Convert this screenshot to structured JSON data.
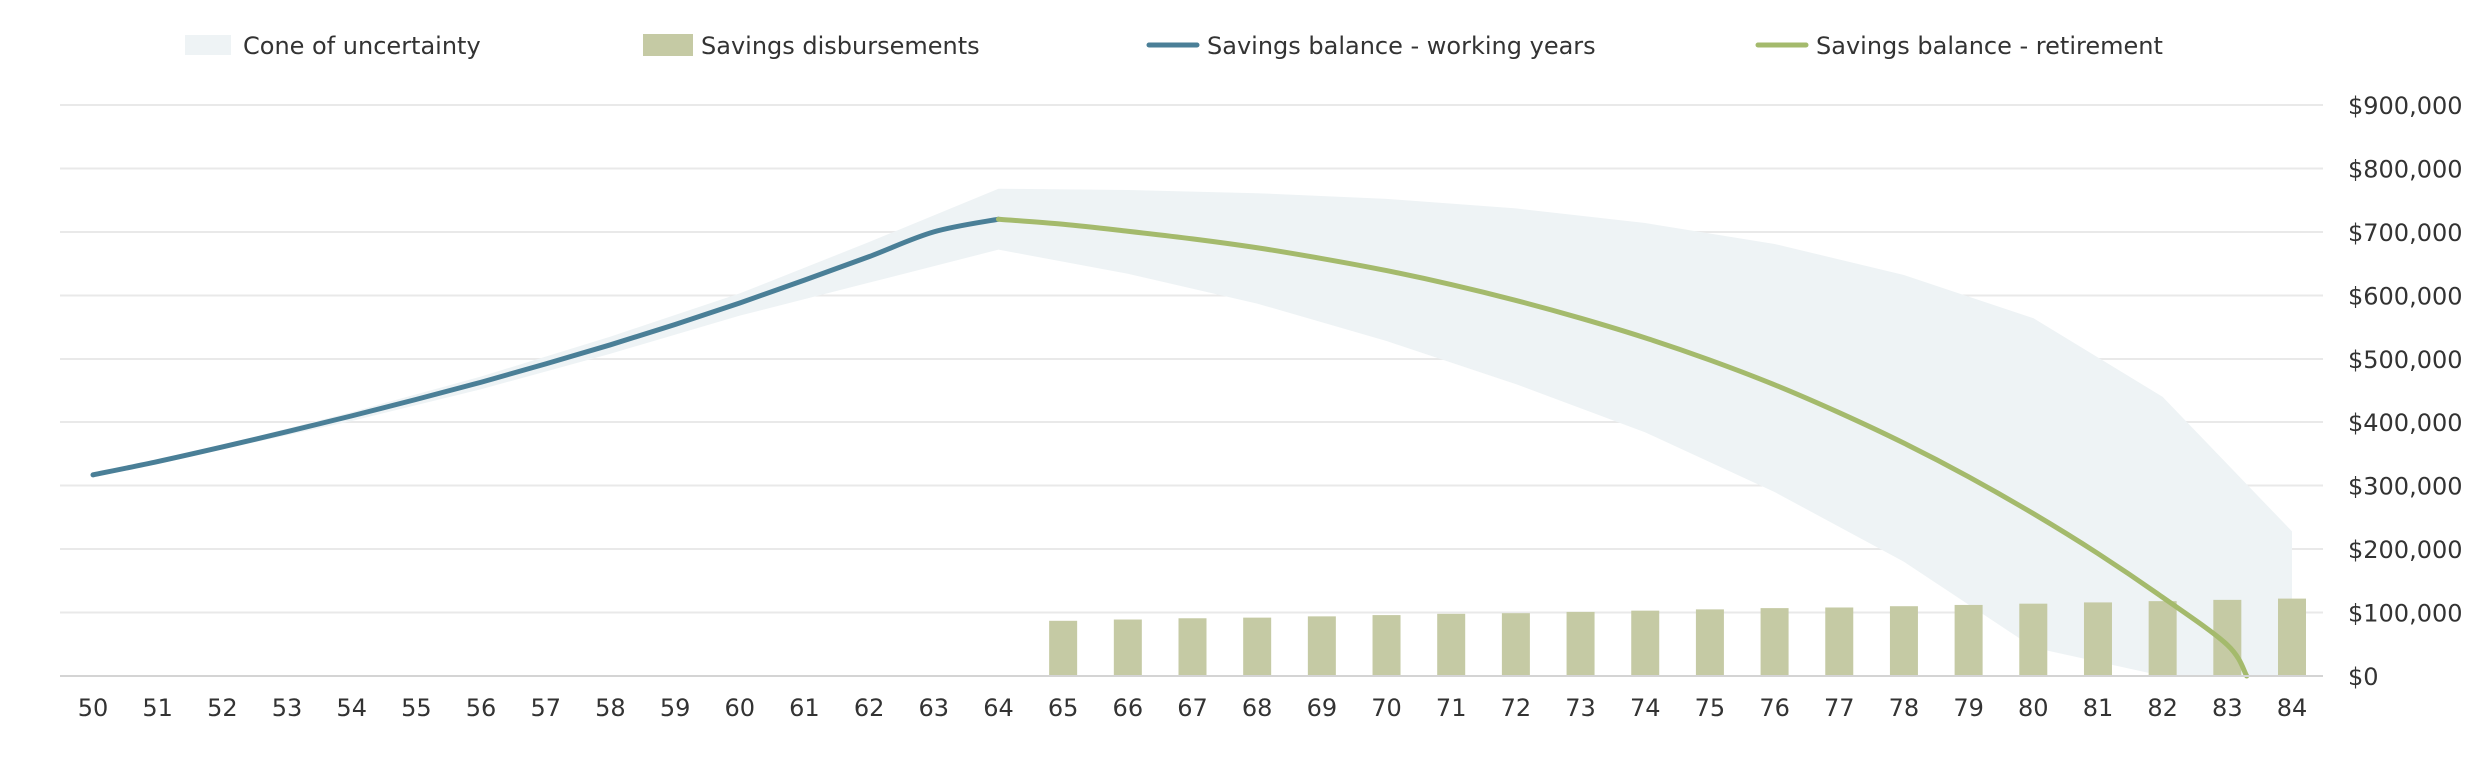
{
  "chart_data": {
    "type": "line",
    "title": "",
    "xlabel": "",
    "ylabel": "",
    "legend": {
      "placement": "top",
      "entries": [
        {
          "key": "cone",
          "label": "Cone of uncertainty",
          "swatch": "band",
          "color": "#eef3f5"
        },
        {
          "key": "disbursements",
          "label": "Savings disbursements",
          "swatch": "box",
          "color": "#c5caa4"
        },
        {
          "key": "working",
          "label": "Savings balance - working years",
          "swatch": "line",
          "color": "#4a7f97"
        },
        {
          "key": "retirement",
          "label": "Savings balance - retirement",
          "swatch": "line",
          "color": "#a4ba6c"
        }
      ]
    },
    "x_ticks": [
      50,
      51,
      52,
      53,
      54,
      55,
      56,
      57,
      58,
      59,
      60,
      61,
      62,
      63,
      64,
      65,
      66,
      67,
      68,
      69,
      70,
      71,
      72,
      73,
      74,
      75,
      76,
      77,
      78,
      79,
      80,
      81,
      82,
      83,
      84
    ],
    "xlim": [
      50,
      84
    ],
    "ylim": [
      0,
      900000
    ],
    "y_ticks": [
      {
        "value": 0,
        "label": "$0"
      },
      {
        "value": 100000,
        "label": "$100,000"
      },
      {
        "value": 200000,
        "label": "$200,000"
      },
      {
        "value": 300000,
        "label": "$300,000"
      },
      {
        "value": 400000,
        "label": "$400,000"
      },
      {
        "value": 500000,
        "label": "$500,000"
      },
      {
        "value": 600000,
        "label": "$600,000"
      },
      {
        "value": 700000,
        "label": "$700,000"
      },
      {
        "value": 800000,
        "label": "$800,000"
      },
      {
        "value": 900000,
        "label": "$900,000"
      }
    ],
    "y_axis_side": "right",
    "grid": true,
    "series": {
      "working": {
        "name": "Savings balance - working years",
        "color": "#4a7f97",
        "x": [
          50,
          51,
          52,
          53,
          54,
          55,
          56,
          57,
          58,
          59,
          60,
          61,
          62,
          63,
          64
        ],
        "values": [
          317000,
          338000,
          361000,
          385000,
          410000,
          436000,
          463000,
          492000,
          522000,
          554000,
          588000,
          624000,
          661000,
          700000,
          720000
        ]
      },
      "retirement": {
        "name": "Savings balance - retirement",
        "color": "#a4ba6c",
        "x": [
          64,
          65,
          66,
          67,
          68,
          69,
          70,
          71,
          72,
          73,
          74,
          75,
          76,
          77,
          78,
          79,
          80,
          81,
          82,
          83
        ],
        "values": [
          720000,
          712000,
          701000,
          689000,
          675000,
          658000,
          639000,
          617000,
          592000,
          564000,
          533000,
          498000,
          459000,
          415000,
          367000,
          314000,
          256000,
          193000,
          124000,
          49000
        ],
        "zero_at": 83.3
      },
      "disbursements": {
        "name": "Savings disbursements",
        "color": "#c5caa4",
        "x": [
          65,
          66,
          67,
          68,
          69,
          70,
          71,
          72,
          73,
          74,
          75,
          76,
          77,
          78,
          79,
          80,
          81,
          82,
          83,
          84
        ],
        "values": [
          87000,
          89000,
          91000,
          92000,
          94000,
          96000,
          98000,
          99000,
          101000,
          103000,
          105000,
          107000,
          108000,
          110000,
          112000,
          114000,
          116000,
          118000,
          120000,
          122000
        ]
      },
      "cone": {
        "name": "Cone of uncertainty",
        "color": "#eef3f5",
        "x": [
          50,
          52,
          54,
          56,
          58,
          60,
          62,
          64,
          66,
          68,
          70,
          72,
          74,
          76,
          78,
          80,
          82,
          84
        ],
        "upper": [
          317000,
          364000,
          416000,
          472000,
          535000,
          603000,
          684000,
          768000,
          766000,
          761000,
          752000,
          737000,
          714000,
          681000,
          632000,
          564000,
          440000,
          228000
        ],
        "lower": [
          317000,
          357000,
          402000,
          452000,
          508000,
          568000,
          620000,
          672000,
          634000,
          587000,
          528000,
          460000,
          384000,
          290000,
          180000,
          45000,
          0,
          0
        ]
      }
    }
  }
}
